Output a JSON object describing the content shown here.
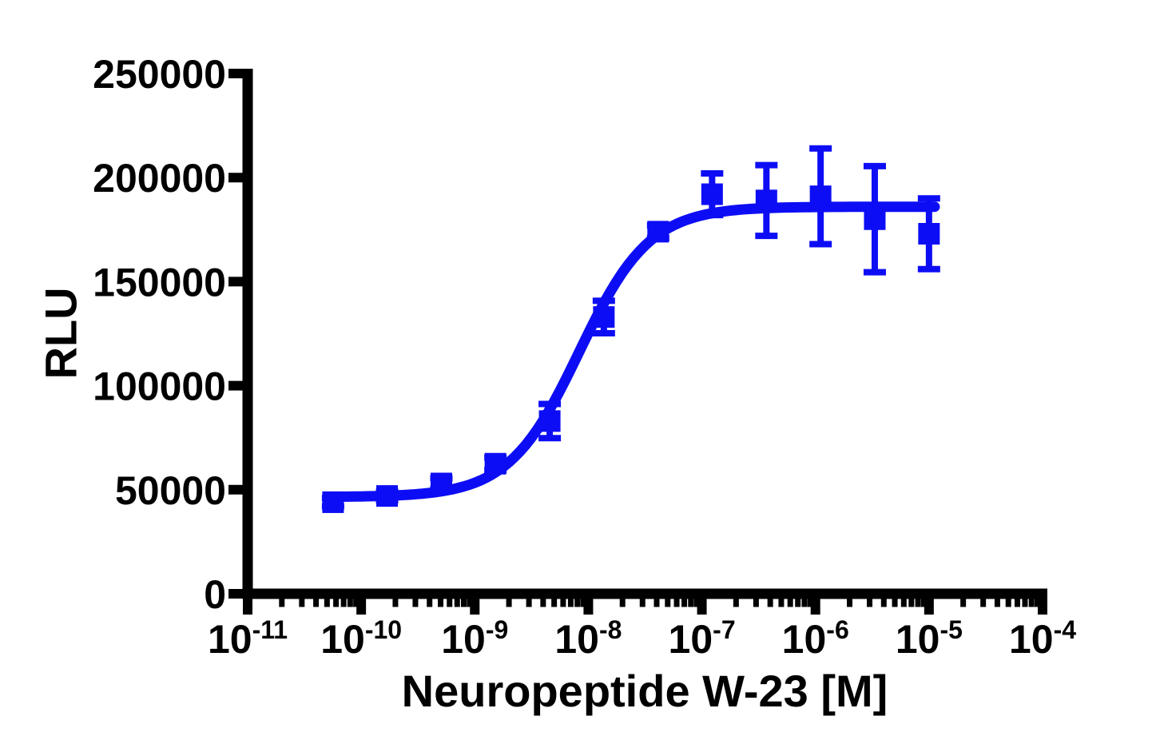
{
  "chart_data": {
    "type": "scatter",
    "title": "",
    "xlabel": "Neuropeptide W-23 [M]",
    "ylabel": "RLU",
    "x_scale": "log10",
    "xlim": [
      1e-11,
      0.0001
    ],
    "ylim": [
      0,
      250000
    ],
    "grid": false,
    "legend": "none",
    "x_tick_base": "10",
    "x_tick_exponents": [
      -11,
      -10,
      -9,
      -8,
      -7,
      -6,
      -5,
      -4
    ],
    "x_minor_ticks": "log multiples 2-9 per decade",
    "y_ticks": [
      0,
      50000,
      100000,
      150000,
      200000,
      250000
    ],
    "series": [
      {
        "name": "Neuropeptide W-23",
        "marker": "filled-square",
        "color": "#0D0DF5",
        "error_bars": "sem, capped",
        "points": [
          {
            "conc_M": 5.65e-11,
            "rlu": 44000,
            "sem": 2000
          },
          {
            "conc_M": 1.69e-10,
            "rlu": 47000,
            "sem": 2000
          },
          {
            "conc_M": 5.08e-10,
            "rlu": 53000,
            "sem": 2500
          },
          {
            "conc_M": 1.52e-09,
            "rlu": 62500,
            "sem": 3000
          },
          {
            "conc_M": 4.57e-09,
            "rlu": 83000,
            "sem": 8200
          },
          {
            "conc_M": 1.37e-08,
            "rlu": 133000,
            "sem": 7800
          },
          {
            "conc_M": 4.12e-08,
            "rlu": 174000,
            "sem": 3000
          },
          {
            "conc_M": 1.23e-07,
            "rlu": 192000,
            "sem": 10000
          },
          {
            "conc_M": 3.7e-07,
            "rlu": 189000,
            "sem": 17000
          },
          {
            "conc_M": 1.11e-06,
            "rlu": 191000,
            "sem": 23000
          },
          {
            "conc_M": 3.33e-06,
            "rlu": 180000,
            "sem": 25500
          },
          {
            "conc_M": 1e-05,
            "rlu": 173000,
            "sem": 17000
          }
        ],
        "fit_curve": {
          "model": "four-parameter logistic",
          "bottom": 46500,
          "top": 186000,
          "logEC50": -8.08,
          "hill_slope": 1.4,
          "draw_range_log": [
            -10.3,
            -4.95
          ]
        }
      }
    ],
    "colors": {
      "axis": "#000000",
      "series_blue": "#0D0DF5",
      "background": "#ffffff"
    }
  }
}
